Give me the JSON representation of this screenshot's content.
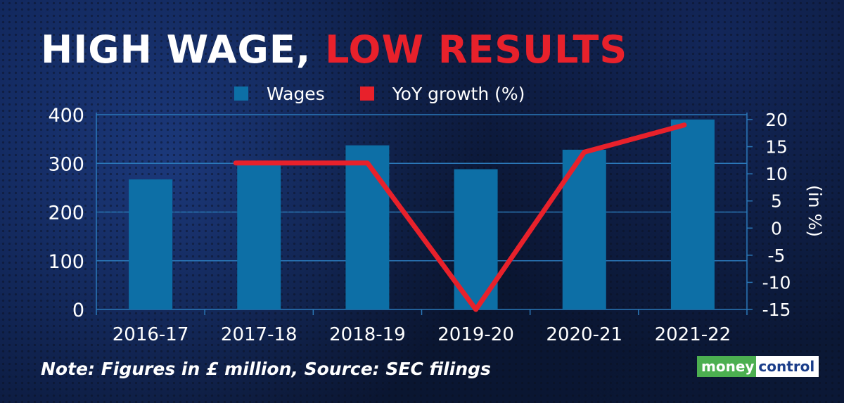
{
  "title": {
    "part1": "HIGH WAGE, ",
    "part2": "LOW RESULTS"
  },
  "note": "Note: Figures in £ million, Source: SEC filings",
  "logo": {
    "part1": "money",
    "part2": "control"
  },
  "colors": {
    "bar": "#0d6fa6",
    "line": "#e8212b",
    "axis": "#2b78b8",
    "text": "#ffffff"
  },
  "chart_data": {
    "type": "bar",
    "categories": [
      "2016-17",
      "2017-18",
      "2018-19",
      "2019-20",
      "2020-21",
      "2021-22"
    ],
    "series": [
      {
        "name": "Wages",
        "type": "bar",
        "axis": "left",
        "values": [
          267,
          300,
          337,
          288,
          328,
          390
        ]
      },
      {
        "name": "YoY growth (%)",
        "type": "line",
        "axis": "right",
        "values": [
          null,
          12,
          12,
          -15,
          14,
          19
        ]
      }
    ],
    "y_left": {
      "range": [
        0,
        400
      ],
      "ticks": [
        0,
        100,
        200,
        300,
        400
      ]
    },
    "y_right": {
      "range": [
        -15,
        20
      ],
      "ticks": [
        -15,
        -10,
        -5,
        0,
        5,
        10,
        15,
        20
      ],
      "label": "(in %)"
    },
    "legend": "top",
    "grid": true
  }
}
